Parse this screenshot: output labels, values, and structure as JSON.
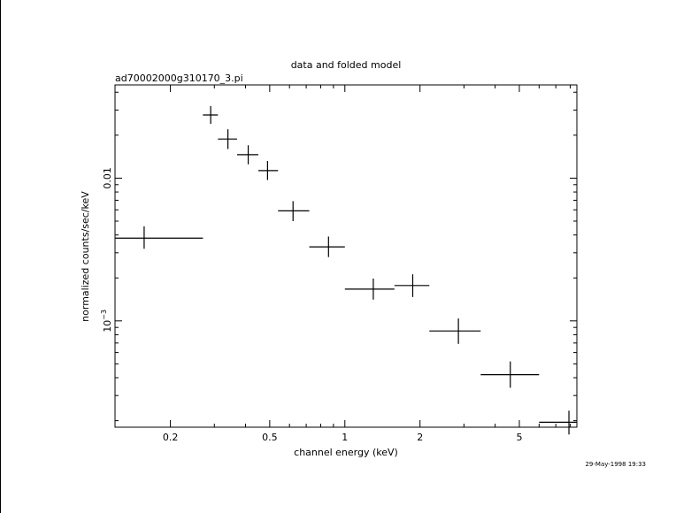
{
  "chart_data": {
    "type": "scatter",
    "title": "data and folded model",
    "subtitle": "ad70002000g310170_3.pi",
    "xlabel": "channel energy (keV)",
    "ylabel": "normalized counts/sec/keV",
    "x_scale": "log",
    "y_scale": "log",
    "xlim": [
      0.12,
      8.5
    ],
    "ylim": [
      0.00018,
      0.045
    ],
    "x_tick_labels": [
      "0.2",
      "0.5",
      "1",
      "2",
      "5"
    ],
    "x_tick_values": [
      0.2,
      0.5,
      1,
      2,
      5
    ],
    "y_tick_labels": [
      {
        "base": "0.01",
        "sup": "",
        "value": 0.01
      },
      {
        "base": "10",
        "sup": "−3",
        "value": 0.001
      }
    ],
    "grid": false,
    "legend": "none",
    "timestamp": "29-May-1998 19:33",
    "points": [
      {
        "x": 0.157,
        "y": 0.0038,
        "xlo": 0.12,
        "xhi": 0.27,
        "ylo": 0.0032,
        "yhi": 0.0046
      },
      {
        "x": 0.29,
        "y": 0.0277,
        "xlo": 0.27,
        "xhi": 0.31,
        "ylo": 0.024,
        "yhi": 0.032
      },
      {
        "x": 0.34,
        "y": 0.0188,
        "xlo": 0.31,
        "xhi": 0.37,
        "ylo": 0.016,
        "yhi": 0.022
      },
      {
        "x": 0.41,
        "y": 0.0146,
        "xlo": 0.37,
        "xhi": 0.45,
        "ylo": 0.0125,
        "yhi": 0.017
      },
      {
        "x": 0.49,
        "y": 0.0113,
        "xlo": 0.45,
        "xhi": 0.54,
        "ylo": 0.0097,
        "yhi": 0.0132
      },
      {
        "x": 0.62,
        "y": 0.0059,
        "xlo": 0.54,
        "xhi": 0.72,
        "ylo": 0.005,
        "yhi": 0.0069
      },
      {
        "x": 0.86,
        "y": 0.0033,
        "xlo": 0.72,
        "xhi": 1.0,
        "ylo": 0.0028,
        "yhi": 0.0039
      },
      {
        "x": 1.3,
        "y": 0.00167,
        "xlo": 1.0,
        "xhi": 1.58,
        "ylo": 0.00141,
        "yhi": 0.00198
      },
      {
        "x": 1.87,
        "y": 0.00177,
        "xlo": 1.58,
        "xhi": 2.18,
        "ylo": 0.00147,
        "yhi": 0.00212
      },
      {
        "x": 2.85,
        "y": 0.00085,
        "xlo": 2.18,
        "xhi": 3.5,
        "ylo": 0.00069,
        "yhi": 0.00104
      },
      {
        "x": 4.6,
        "y": 0.00042,
        "xlo": 3.5,
        "xhi": 6.0,
        "ylo": 0.00034,
        "yhi": 0.00052
      },
      {
        "x": 7.9,
        "y": 0.000195,
        "xlo": 6.0,
        "xhi": 8.5,
        "ylo": 0.00016,
        "yhi": 0.000235
      }
    ]
  }
}
